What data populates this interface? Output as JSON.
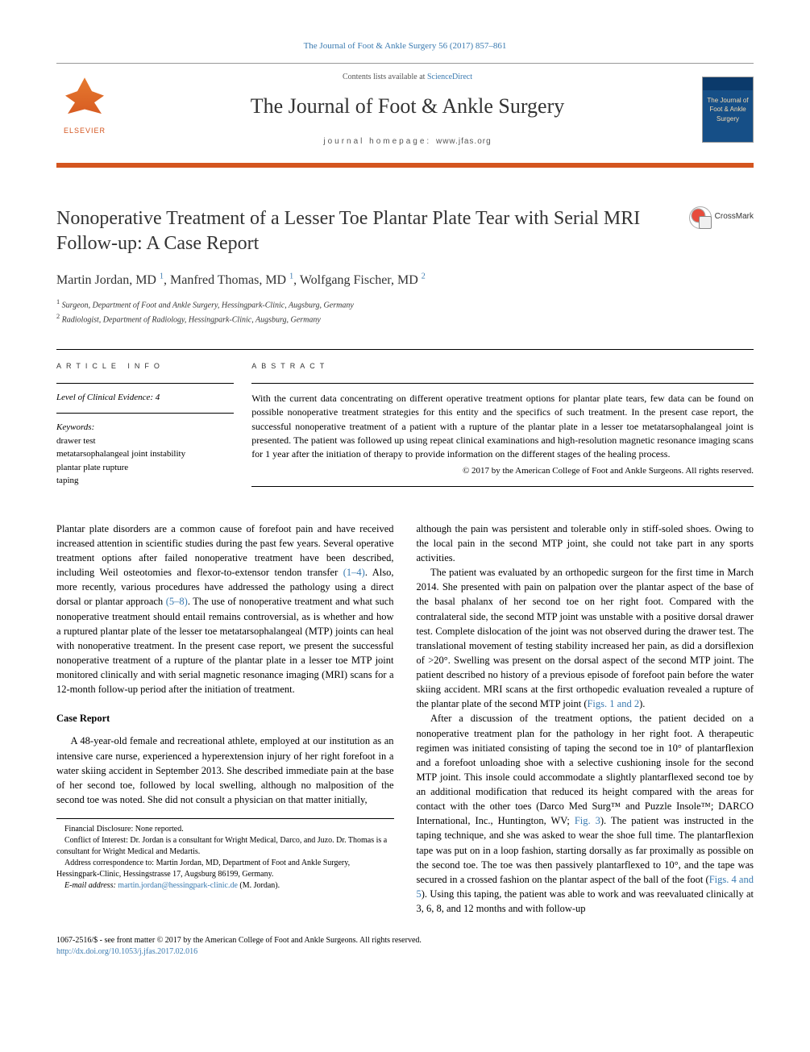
{
  "header_link": "The Journal of Foot & Ankle Surgery 56 (2017) 857–861",
  "masthead": {
    "contents_prefix": "Contents lists available at ",
    "contents_link": "ScienceDirect",
    "journal_name": "The Journal of Foot & Ankle Surgery",
    "homepage_prefix": "journal homepage: ",
    "homepage": "www.jfas.org",
    "publisher": "ELSEVIER",
    "cover_text": "The Journal of Foot & Ankle Surgery"
  },
  "article": {
    "title": "Nonoperative Treatment of a Lesser Toe Plantar Plate Tear with Serial MRI Follow-up: A Case Report",
    "crossmark": "CrossMark",
    "authors_html": "Martin Jordan, MD <sup>1</sup>, Manfred Thomas, MD <sup>1</sup>, Wolfgang Fischer, MD <sup>2</sup>",
    "affiliations": [
      "1 Surgeon, Department of Foot and Ankle Surgery, Hessingpark-Clinic, Augsburg, Germany",
      "2 Radiologist, Department of Radiology, Hessingpark-Clinic, Augsburg, Germany"
    ]
  },
  "info": {
    "label": "ARTICLE INFO",
    "loe_label": "Level of Clinical Evidence:",
    "loe_value": "4",
    "keywords_label": "Keywords:",
    "keywords": [
      "drawer test",
      "metatarsophalangeal joint instability",
      "plantar plate rupture",
      "taping"
    ]
  },
  "abstract": {
    "label": "ABSTRACT",
    "text": "With the current data concentrating on different operative treatment options for plantar plate tears, few data can be found on possible nonoperative treatment strategies for this entity and the specifics of such treatment. In the present case report, the successful nonoperative treatment of a patient with a rupture of the plantar plate in a lesser toe metatarsophalangeal joint is presented. The patient was followed up using repeat clinical examinations and high-resolution magnetic resonance imaging scans for 1 year after the initiation of therapy to provide information on the different stages of the healing process.",
    "copyright": "© 2017 by the American College of Foot and Ankle Surgeons. All rights reserved."
  },
  "body": {
    "intro": "Plantar plate disorders are a common cause of forefoot pain and have received increased attention in scientific studies during the past few years. Several operative treatment options after failed nonoperative treatment have been described, including Weil osteotomies and flexor-to-extensor tendon transfer (1–4). Also, more recently, various procedures have addressed the pathology using a direct dorsal or plantar approach (5–8). The use of nonoperative treatment and what such nonoperative treatment should entail remains controversial, as is whether and how a ruptured plantar plate of the lesser toe metatarsophalangeal (MTP) joints can heal with nonoperative treatment. In the present case report, we present the successful nonoperative treatment of a rupture of the plantar plate in a lesser toe MTP joint monitored clinically and with serial magnetic resonance imaging (MRI) scans for a 12-month follow-up period after the initiation of treatment.",
    "refs_intro1": "(1–4)",
    "refs_intro2": "(5–8)",
    "case_heading": "Case Report",
    "case_p1": "A 48-year-old female and recreational athlete, employed at our institution as an intensive care nurse, experienced a hyperextension injury of her right forefoot in a water skiing accident in September 2013. She described immediate pain at the base of her second toe, followed by local swelling, although no malposition of the second toe was noted. She did not consult a physician on that matter initially,",
    "col2_p1": "although the pain was persistent and tolerable only in stiff-soled shoes. Owing to the local pain in the second MTP joint, she could not take part in any sports activities.",
    "col2_p2": "The patient was evaluated by an orthopedic surgeon for the first time in March 2014. She presented with pain on palpation over the plantar aspect of the base of the basal phalanx of her second toe on her right foot. Compared with the contralateral side, the second MTP joint was unstable with a positive dorsal drawer test. Complete dislocation of the joint was not observed during the drawer test. The translational movement of testing stability increased her pain, as did a dorsiflexion of >20°. Swelling was present on the dorsal aspect of the second MTP joint. The patient described no history of a previous episode of forefoot pain before the water skiing accident. MRI scans at the first orthopedic evaluation revealed a rupture of the plantar plate of the second MTP joint (Figs. 1 and 2).",
    "col2_p3": "After a discussion of the treatment options, the patient decided on a nonoperative treatment plan for the pathology in her right foot. A therapeutic regimen was initiated consisting of taping the second toe in 10° of plantarflexion and a forefoot unloading shoe with a selective cushioning insole for the second MTP joint. This insole could accommodate a slightly plantarflexed second toe by an additional modification that reduced its height compared with the areas for contact with the other toes (Darco Med Surg™ and Puzzle Insole™; DARCO International, Inc., Huntington, WV; Fig. 3). The patient was instructed in the taping technique, and she was asked to wear the shoe full time. The plantarflexion tape was put on in a loop fashion, starting dorsally as far proximally as possible on the second toe. The toe was then passively plantarflexed to 10°, and the tape was secured in a crossed fashion on the plantar aspect of the ball of the foot (Figs. 4 and 5). Using this taping, the patient was able to work and was reevaluated clinically at 3, 6, 8, and 12 months and with follow-up",
    "ref_figs12": "Figs. 1 and 2",
    "ref_fig3": "Fig. 3",
    "ref_figs45": "Figs. 4 and 5"
  },
  "footnotes": {
    "fd": "Financial Disclosure: None reported.",
    "coi": "Conflict of Interest: Dr. Jordan is a consultant for Wright Medical, Darco, and Juzo. Dr. Thomas is a consultant for Wright Medical and Medartis.",
    "corr": "Address correspondence to: Martin Jordan, MD, Department of Foot and Ankle Surgery, Hessingpark-Clinic, Hessingstrasse 17, Augsburg 86199, Germany.",
    "email_label": "E-mail address:",
    "email": "martin.jordan@hessingpark-clinic.de",
    "email_suffix": "(M. Jordan)."
  },
  "bottom": {
    "line1": "1067-2516/$ - see front matter © 2017 by the American College of Foot and Ankle Surgeons. All rights reserved.",
    "doi": "http://dx.doi.org/10.1053/j.jfas.2017.02.016"
  },
  "colors": {
    "accent": "#d4551f",
    "link": "#3a7ab0",
    "text": "#000000",
    "cover_bg": "#0b3a6b"
  }
}
